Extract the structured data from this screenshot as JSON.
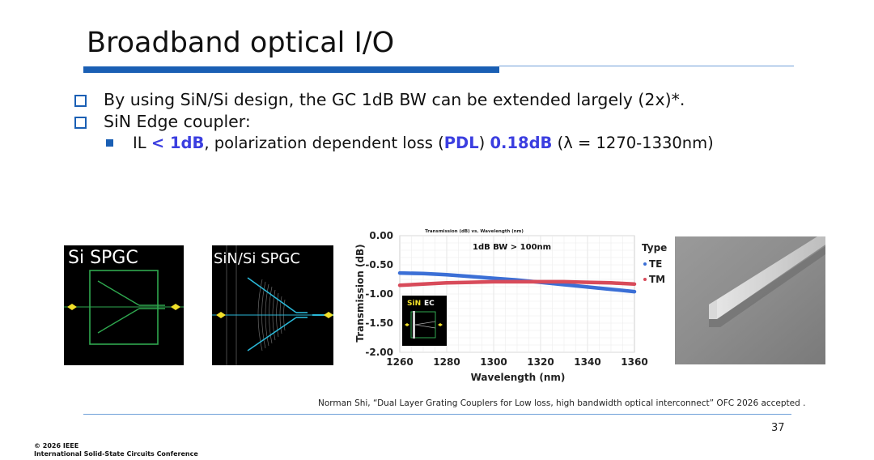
{
  "slide": {
    "title": "Broadband optical I/O",
    "bullets": [
      {
        "text": "By using SiN/Si design, the GC 1dB BW can be extended largely (2x)*."
      },
      {
        "text": "SiN Edge coupler:",
        "sub": {
          "prefix": "IL ",
          "il_value": "< 1dB",
          "mid": ", polarization dependent loss (",
          "pdl": "PDL",
          "close": ") ",
          "pdl_value": "0.18dB",
          "suffix": " (λ = 1270-1330nm)"
        }
      }
    ]
  },
  "figures": {
    "si_spgc_label": "Si SPGC",
    "sin_si_spgc_label": "SiN/Si SPGC"
  },
  "chart_data": {
    "type": "line",
    "title": "Transmission (dB) vs. Wavelength (nm)",
    "xlabel": "Wavelength (nm)",
    "ylabel": "Transmission (dB)",
    "xlim": [
      1260,
      1360
    ],
    "ylim": [
      -2.0,
      0.0
    ],
    "x_ticks": [
      "1260",
      "1280",
      "1300",
      "1320",
      "1340",
      "1360"
    ],
    "y_ticks": [
      "0.00",
      "-0.50",
      "-1.00",
      "-1.50",
      "-2.00"
    ],
    "grid": true,
    "annotation": "1dB BW > 100nm",
    "legend_title": "Type",
    "legend_position": "right",
    "inset_label": {
      "sin": "SiN",
      "ec": "EC"
    },
    "x": [
      1260,
      1270,
      1280,
      1290,
      1300,
      1310,
      1320,
      1330,
      1340,
      1350,
      1360
    ],
    "series": [
      {
        "name": "TE",
        "color": "#3b6fd6",
        "values": [
          -0.64,
          -0.65,
          -0.67,
          -0.7,
          -0.73,
          -0.76,
          -0.8,
          -0.84,
          -0.88,
          -0.92,
          -0.96
        ]
      },
      {
        "name": "TM",
        "color": "#d84b5a",
        "values": [
          -0.85,
          -0.83,
          -0.81,
          -0.8,
          -0.79,
          -0.79,
          -0.79,
          -0.79,
          -0.8,
          -0.81,
          -0.83
        ]
      }
    ]
  },
  "reference": "Norman Shi, “Dual Layer Grating Couplers for Low loss, high bandwidth optical interconnect” OFC 2026 accepted .",
  "page_number": "37",
  "footer": {
    "line1": "© 2026 IEEE",
    "line2": "International Solid-State Circuits Conference"
  }
}
